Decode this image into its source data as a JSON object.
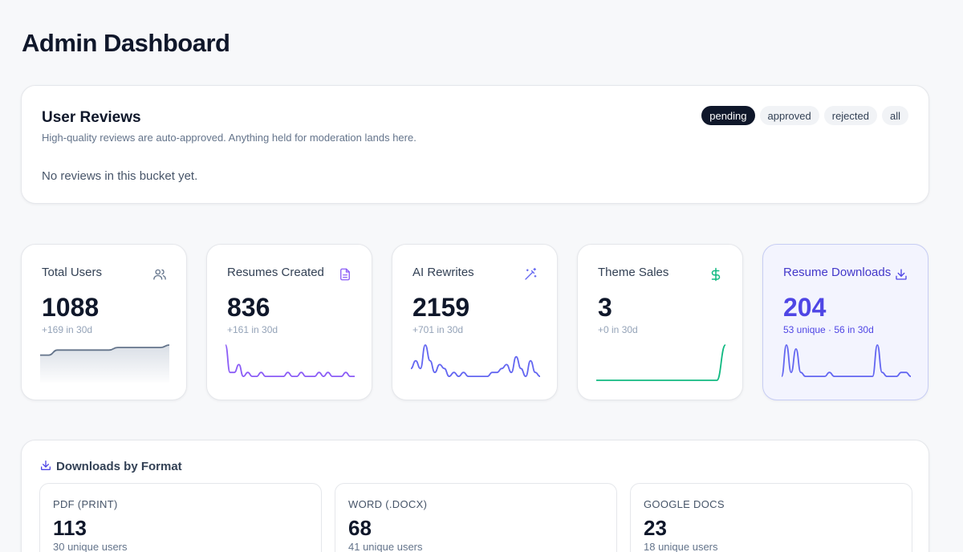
{
  "page": {
    "title": "Admin Dashboard"
  },
  "reviews": {
    "title": "User Reviews",
    "subtitle": "High-quality reviews are auto-approved. Anything held for moderation lands here.",
    "empty_text": "No reviews in this bucket yet.",
    "filters": [
      "pending",
      "approved",
      "rejected",
      "all"
    ],
    "active_filter": "pending"
  },
  "stats": [
    {
      "label": "Total Users",
      "value": "1088",
      "delta": "+169 in 30d",
      "icon": "users-icon",
      "color": "#64748b",
      "series": [
        10,
        10,
        12,
        12,
        12,
        12,
        12,
        12,
        12,
        13,
        13,
        13,
        13,
        13,
        13,
        14
      ]
    },
    {
      "label": "Resumes Created",
      "value": "836",
      "delta": "+161 in 30d",
      "icon": "document-icon",
      "color": "#8b5cf6",
      "series": [
        9,
        2,
        2,
        4,
        1,
        2,
        1,
        1,
        2,
        1,
        1,
        1,
        1,
        1,
        2,
        1,
        1,
        2,
        1,
        1,
        1,
        2,
        1,
        2,
        1,
        1,
        1,
        2,
        1,
        1
      ]
    },
    {
      "label": "AI Rewrites",
      "value": "2159",
      "delta": "+701 in 30d",
      "icon": "magic-wand-icon",
      "color": "#6366f1",
      "series": [
        3,
        5,
        3,
        9,
        5,
        2,
        4,
        3,
        1,
        2,
        1,
        2,
        1,
        1,
        1,
        1,
        1,
        2,
        2,
        3,
        4,
        2,
        6,
        3,
        1,
        5,
        2,
        1
      ]
    },
    {
      "label": "Theme Sales",
      "value": "3",
      "delta": "+0 in 30d",
      "icon": "dollar-icon",
      "color": "#10b981",
      "series": [
        0,
        0,
        0,
        0,
        0,
        0,
        0,
        0,
        0,
        0,
        0,
        0,
        0,
        0,
        0,
        1
      ]
    },
    {
      "label": "Resume Downloads",
      "value": "204",
      "delta": "53 unique · 56 in 30d",
      "icon": "download-icon",
      "color": "#6366f1",
      "series": [
        1,
        9,
        2,
        8,
        2,
        1,
        1,
        1,
        1,
        1,
        2,
        1,
        1,
        1,
        1,
        1,
        1,
        1,
        1,
        1,
        9,
        2,
        1,
        1,
        1,
        2,
        2,
        1
      ],
      "highlight": true
    }
  ],
  "formats": {
    "title": "Downloads by Format",
    "items": [
      {
        "label": "PDF (PRINT)",
        "value": "113",
        "sub": "30 unique users"
      },
      {
        "label": "WORD (.DOCX)",
        "value": "68",
        "sub": "41 unique users"
      },
      {
        "label": "GOOGLE DOCS",
        "value": "23",
        "sub": "18 unique users"
      }
    ]
  }
}
